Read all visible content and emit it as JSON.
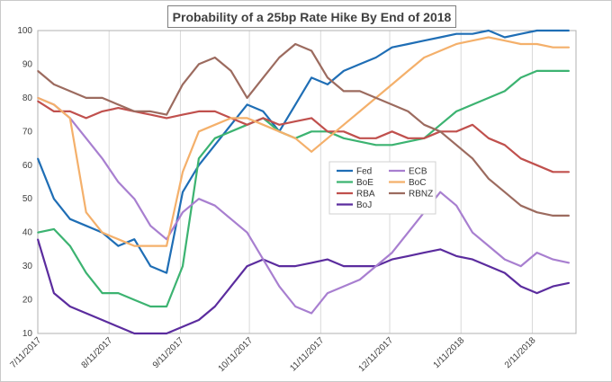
{
  "chart_data": {
    "type": "line",
    "title": "Probability of a 25bp Rate Hike By End of 2018",
    "xlabel": "",
    "ylabel": "",
    "ylim": [
      10,
      100
    ],
    "yticks": [
      10,
      20,
      30,
      40,
      50,
      60,
      70,
      80,
      90,
      100
    ],
    "x_tick_labels": [
      "7/11/2017",
      "8/11/2017",
      "9/11/2017",
      "10/11/2017",
      "11/11/2017",
      "12/11/2017",
      "1/11/2018",
      "2/11/2018"
    ],
    "grid": "vertical",
    "legend_position": "center",
    "x": [
      "2017-07-11",
      "2017-07-18",
      "2017-07-25",
      "2017-08-01",
      "2017-08-08",
      "2017-08-15",
      "2017-08-22",
      "2017-08-29",
      "2017-09-05",
      "2017-09-12",
      "2017-09-19",
      "2017-09-26",
      "2017-10-03",
      "2017-10-10",
      "2017-10-17",
      "2017-10-24",
      "2017-10-31",
      "2017-11-07",
      "2017-11-14",
      "2017-11-21",
      "2017-11-28",
      "2017-12-05",
      "2017-12-12",
      "2017-12-19",
      "2017-12-26",
      "2018-01-02",
      "2018-01-09",
      "2018-01-16",
      "2018-01-23",
      "2018-01-30",
      "2018-02-06",
      "2018-02-13",
      "2018-02-20",
      "2018-02-27"
    ],
    "series": [
      {
        "name": "Fed",
        "color": "#1f6eb5",
        "values": [
          62,
          50,
          44,
          42,
          40,
          36,
          38,
          30,
          28,
          52,
          60,
          66,
          72,
          78,
          76,
          70,
          78,
          86,
          84,
          88,
          90,
          92,
          95,
          96,
          97,
          98,
          99,
          99,
          100,
          98,
          99,
          100,
          100,
          100
        ]
      },
      {
        "name": "BoE",
        "color": "#3cb371",
        "values": [
          40,
          41,
          36,
          28,
          22,
          22,
          20,
          18,
          18,
          30,
          62,
          68,
          70,
          72,
          74,
          70,
          68,
          70,
          70,
          68,
          67,
          66,
          66,
          67,
          68,
          72,
          76,
          78,
          80,
          82,
          86,
          88,
          88,
          88
        ]
      },
      {
        "name": "RBA",
        "color": "#c0504d",
        "values": [
          79,
          76,
          76,
          74,
          76,
          77,
          76,
          75,
          74,
          75,
          76,
          76,
          74,
          72,
          74,
          72,
          73,
          74,
          70,
          70,
          68,
          68,
          70,
          68,
          68,
          70,
          70,
          72,
          68,
          66,
          62,
          60,
          58,
          58
        ]
      },
      {
        "name": "BoJ",
        "color": "#5b2c9e",
        "values": [
          38,
          22,
          18,
          16,
          14,
          12,
          10,
          10,
          10,
          12,
          14,
          18,
          24,
          30,
          32,
          30,
          30,
          31,
          32,
          30,
          30,
          30,
          32,
          33,
          34,
          35,
          33,
          32,
          30,
          28,
          24,
          22,
          24,
          25
        ]
      },
      {
        "name": "ECB",
        "color": "#a87fd0",
        "values": [
          80,
          78,
          74,
          68,
          62,
          55,
          50,
          42,
          38,
          46,
          50,
          48,
          44,
          40,
          32,
          24,
          18,
          16,
          22,
          24,
          26,
          30,
          34,
          40,
          46,
          52,
          48,
          40,
          36,
          32,
          30,
          34,
          32,
          31
        ]
      },
      {
        "name": "BoC",
        "color": "#f4b06b",
        "values": [
          80,
          78,
          74,
          46,
          40,
          38,
          36,
          36,
          36,
          58,
          70,
          72,
          74,
          74,
          72,
          70,
          68,
          64,
          68,
          72,
          76,
          80,
          84,
          88,
          92,
          94,
          96,
          97,
          98,
          97,
          96,
          96,
          95,
          95
        ]
      },
      {
        "name": "RBNZ",
        "color": "#9c6b5f",
        "values": [
          88,
          84,
          82,
          80,
          80,
          78,
          76,
          76,
          75,
          84,
          90,
          92,
          88,
          80,
          86,
          92,
          96,
          94,
          86,
          82,
          82,
          80,
          78,
          76,
          72,
          70,
          66,
          62,
          56,
          52,
          48,
          46,
          45,
          45
        ]
      }
    ]
  }
}
